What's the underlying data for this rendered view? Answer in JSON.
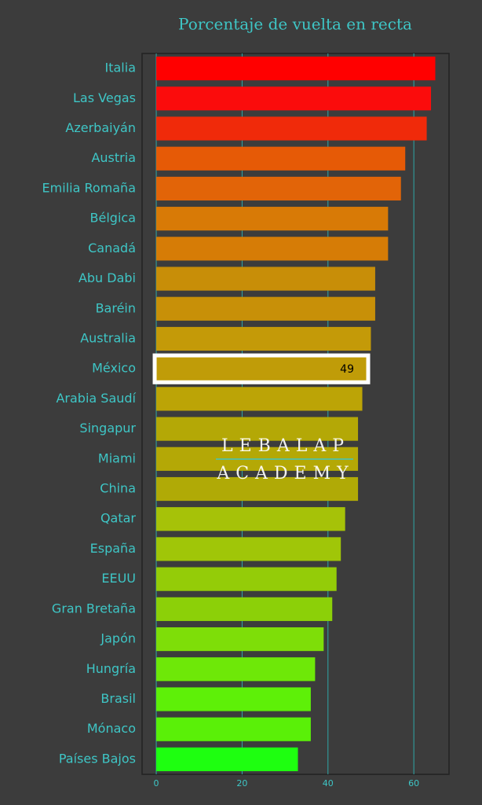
{
  "chart_data": {
    "type": "barh",
    "title": "Porcentaje de vuelta en recta",
    "categories": [
      "Italia",
      "Las Vegas",
      "Azerbaiyán",
      "Austria",
      "Emilia Romaña",
      "Bélgica",
      "Canadá",
      "Abu Dabi",
      "Baréin",
      "Australia",
      "México",
      "Arabia Saudí",
      "Singapur",
      "Miami",
      "China",
      "Qatar",
      "España",
      "EEUU",
      "Gran Bretaña",
      "Japón",
      "Hungría",
      "Brasil",
      "Mónaco",
      "Países Bajos"
    ],
    "values": [
      65,
      64,
      63,
      58,
      57,
      54,
      54,
      51,
      51,
      50,
      49,
      48,
      47,
      47,
      47,
      44,
      43,
      42,
      41,
      39,
      37,
      36,
      36,
      33
    ],
    "value_labels": [
      null,
      null,
      null,
      null,
      null,
      null,
      null,
      null,
      null,
      null,
      "49",
      null,
      null,
      null,
      null,
      null,
      null,
      null,
      null,
      null,
      null,
      null,
      null,
      null
    ],
    "colors": [
      "#ff0000",
      "#fb0c0c",
      "#f02a0a",
      "#e65a06",
      "#e26408",
      "#d87a06",
      "#d67c06",
      "#c88e08",
      "#c89008",
      "#c49a08",
      "#c09c08",
      "#bca406",
      "#b4a806",
      "#b4a806",
      "#b0aa06",
      "#a6c208",
      "#a0c608",
      "#94cc08",
      "#8cd008",
      "#7ede08",
      "#6ee808",
      "#5ef008",
      "#5af008",
      "#1eff10"
    ],
    "xlim": [
      -3.3,
      68.2
    ],
    "xticks": [
      0,
      20,
      40,
      60
    ],
    "grid": true,
    "watermark": [
      "LEBALAP",
      "ACADEMY"
    ]
  }
}
